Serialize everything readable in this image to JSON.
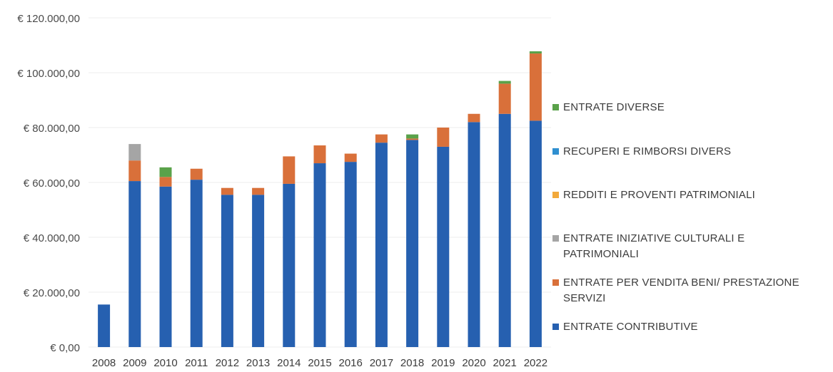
{
  "chart_data": {
    "type": "bar",
    "stacked": true,
    "title": "",
    "xlabel": "",
    "ylabel": "",
    "ylim": [
      0,
      120000
    ],
    "y_ticks": [
      0,
      20000,
      40000,
      60000,
      80000,
      100000,
      120000
    ],
    "y_tick_labels": [
      "€ 0,00",
      "€ 20.000,00",
      "€ 40.000,00",
      "€ 60.000,00",
      "€ 80.000,00",
      "€ 100.000,00",
      "€ 120.000,00"
    ],
    "grid": true,
    "legend_position": "right",
    "categories": [
      "2008",
      "2009",
      "2010",
      "2011",
      "2012",
      "2013",
      "2014",
      "2015",
      "2016",
      "2017",
      "2018",
      "2019",
      "2020",
      "2021",
      "2022"
    ],
    "series": [
      {
        "name": "ENTRATE CONTRIBUTIVE",
        "color": "#2660b0",
        "values": [
          15500,
          60500,
          58500,
          61000,
          55500,
          55500,
          59500,
          67000,
          67500,
          74500,
          75500,
          73000,
          82000,
          85000,
          82500
        ]
      },
      {
        "name": "ENTRATE PER VENDITA BENI/ PRESTAZIONE SERVIZI",
        "color": "#d9703a",
        "values": [
          0,
          7500,
          3500,
          4000,
          2500,
          2500,
          10000,
          6500,
          3000,
          3000,
          500,
          7000,
          3000,
          11000,
          24500
        ]
      },
      {
        "name": "ENTRATE INIZIATIVE CULTURALI E PATRIMONIALI",
        "color": "#a5a5a5",
        "values": [
          0,
          6000,
          0,
          0,
          0,
          0,
          0,
          0,
          0,
          0,
          0,
          0,
          0,
          0,
          0
        ]
      },
      {
        "name": "REDDITI E PROVENTI PATRIMONIALI",
        "color": "#f2a93b",
        "values": [
          0,
          0,
          0,
          0,
          0,
          0,
          0,
          0,
          0,
          0,
          0,
          0,
          0,
          0,
          0
        ]
      },
      {
        "name": "RECUPERI E RIMBORSI DIVERS",
        "color": "#2f8fd0",
        "values": [
          0,
          0,
          0,
          0,
          0,
          0,
          0,
          0,
          0,
          0,
          0,
          0,
          0,
          0,
          0
        ]
      },
      {
        "name": "ENTRATE DIVERSE",
        "color": "#5aa24a",
        "values": [
          0,
          0,
          3500,
          0,
          0,
          0,
          0,
          0,
          0,
          0,
          1500,
          0,
          0,
          1000,
          800
        ]
      }
    ],
    "legend_order": [
      "ENTRATE DIVERSE",
      "RECUPERI E RIMBORSI DIVERS",
      "REDDITI E PROVENTI PATRIMONIALI",
      "ENTRATE INIZIATIVE CULTURALI E PATRIMONIALI",
      "ENTRATE PER VENDITA BENI/ PRESTAZIONE SERVIZI",
      "ENTRATE CONTRIBUTIVE"
    ]
  }
}
